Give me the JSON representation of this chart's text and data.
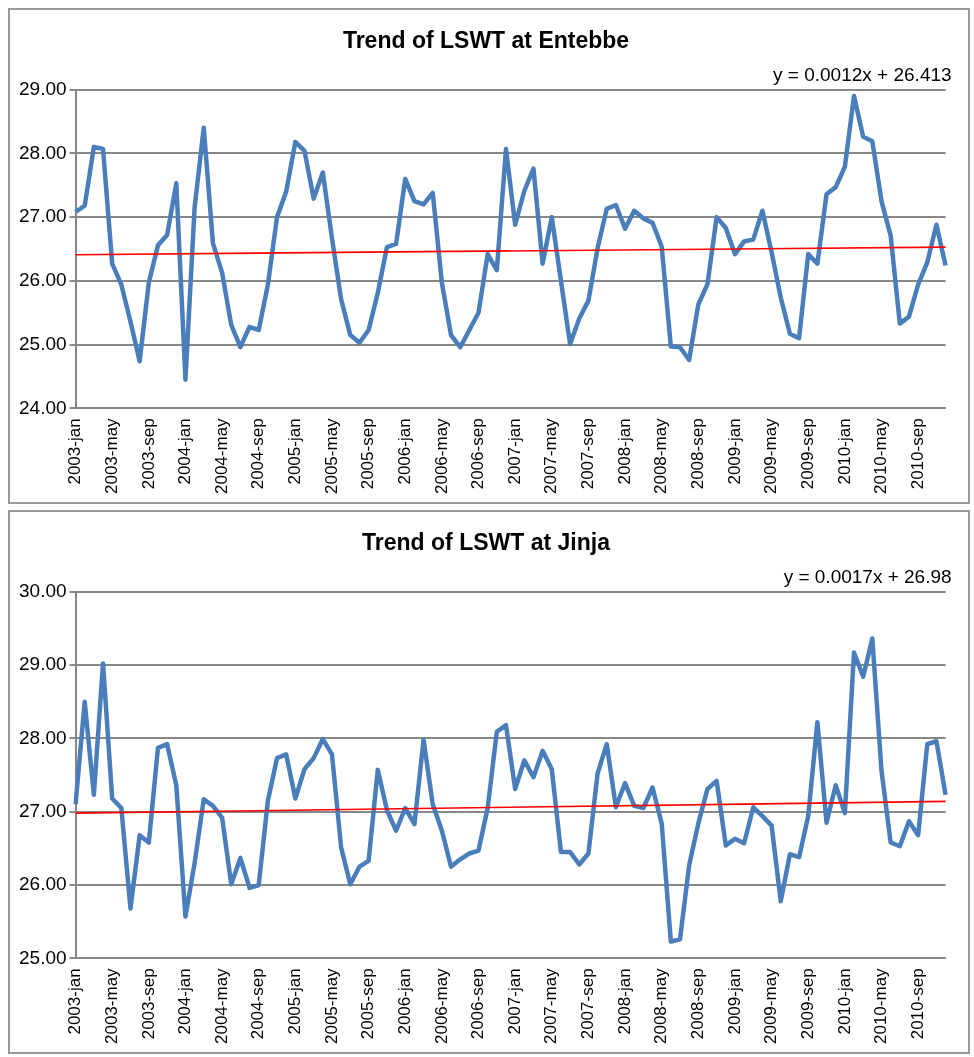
{
  "chart_data": [
    {
      "type": "line",
      "title": "Trend of LSWT at Entebbe",
      "annotations": [
        "y = 0.0012x + 26.413"
      ],
      "categories": [
        "2003-jan",
        null,
        null,
        null,
        "2003-may",
        null,
        null,
        null,
        "2003-sep",
        null,
        null,
        null,
        "2004-jan",
        null,
        null,
        null,
        "2004-may",
        null,
        null,
        null,
        "2004-sep",
        null,
        null,
        null,
        "2005-jan",
        null,
        null,
        null,
        "2005-may",
        null,
        null,
        null,
        "2005-sep",
        null,
        null,
        null,
        "2006-jan",
        null,
        null,
        null,
        "2006-may",
        null,
        null,
        null,
        "2006-sep",
        null,
        null,
        null,
        "2007-jan",
        null,
        null,
        null,
        "2007-may",
        null,
        null,
        null,
        "2007-sep",
        null,
        null,
        null,
        "2008-jan",
        null,
        null,
        null,
        "2008-may",
        null,
        null,
        null,
        "2008-sep",
        null,
        null,
        null,
        "2009-jan",
        null,
        null,
        null,
        "2009-may",
        null,
        null,
        null,
        "2009-sep",
        null,
        null,
        null,
        "2010-jan",
        null,
        null,
        null,
        "2010-may",
        null,
        null,
        null,
        "2010-sep",
        null,
        null,
        null
      ],
      "series": [
        {
          "color": "#4a7ebb",
          "values": [
            27.08,
            27.18,
            28.1,
            28.07,
            26.27,
            25.94,
            25.36,
            24.74,
            25.97,
            26.56,
            26.72,
            27.53,
            24.45,
            27.15,
            28.4,
            26.59,
            26.13,
            25.31,
            24.96,
            25.28,
            25.23,
            25.94,
            27.0,
            27.4,
            28.18,
            28.04,
            27.29,
            27.7,
            26.67,
            25.71,
            25.15,
            25.03,
            25.23,
            25.81,
            26.53,
            26.58,
            27.6,
            27.25,
            27.2,
            27.38,
            25.97,
            25.15,
            24.96,
            25.23,
            25.5,
            26.42,
            26.17,
            28.07,
            26.88,
            27.41,
            27.76,
            26.27,
            27.0,
            26.0,
            25.01,
            25.41,
            25.69,
            26.51,
            27.13,
            27.19,
            26.82,
            27.1,
            26.98,
            26.91,
            26.54,
            24.97,
            24.96,
            24.76,
            25.63,
            25.95,
            27.0,
            26.83,
            26.42,
            26.62,
            26.65,
            27.1,
            26.45,
            25.74,
            25.17,
            25.1,
            26.42,
            26.27,
            27.36,
            27.47,
            27.79,
            28.9,
            28.26,
            28.19,
            27.25,
            26.71,
            25.33,
            25.44,
            25.94,
            26.29,
            26.88,
            26.24
          ]
        },
        {
          "color": "#ff0000",
          "values": [
            26.41,
            null,
            null,
            null,
            null,
            null,
            null,
            null,
            null,
            null,
            null,
            null,
            null,
            null,
            null,
            null,
            null,
            null,
            null,
            null,
            null,
            null,
            null,
            null,
            null,
            null,
            null,
            null,
            null,
            null,
            null,
            null,
            null,
            null,
            null,
            null,
            null,
            null,
            null,
            null,
            null,
            null,
            null,
            null,
            null,
            null,
            null,
            null,
            null,
            null,
            null,
            null,
            null,
            null,
            null,
            null,
            null,
            null,
            null,
            null,
            null,
            null,
            null,
            null,
            null,
            null,
            null,
            null,
            null,
            null,
            null,
            null,
            null,
            null,
            null,
            null,
            null,
            null,
            null,
            null,
            null,
            null,
            null,
            null,
            null,
            null,
            null,
            null,
            null,
            null,
            null,
            null,
            null,
            null,
            null,
            26.53
          ]
        }
      ],
      "ylim": [
        24,
        29
      ],
      "yticks": [
        {
          "value": 24,
          "label": "24.00"
        },
        {
          "value": 25,
          "label": "25.00"
        },
        {
          "value": 26,
          "label": "26.00"
        },
        {
          "value": 27,
          "label": "27.00"
        },
        {
          "value": 28,
          "label": "28.00"
        },
        {
          "value": 29,
          "label": "29.00"
        }
      ],
      "grid": "y",
      "legend": false,
      "marker": "none"
    },
    {
      "type": "line",
      "title": "Trend of LSWT at Jinja",
      "annotations": [
        "y = 0.0017x + 26.98"
      ],
      "categories": [
        "2003-jan",
        null,
        null,
        null,
        "2003-may",
        null,
        null,
        null,
        "2003-sep",
        null,
        null,
        null,
        "2004-jan",
        null,
        null,
        null,
        "2004-may",
        null,
        null,
        null,
        "2004-sep",
        null,
        null,
        null,
        "2005-jan",
        null,
        null,
        null,
        "2005-may",
        null,
        null,
        null,
        "2005-sep",
        null,
        null,
        null,
        "2006-jan",
        null,
        null,
        null,
        "2006-may",
        null,
        null,
        null,
        "2006-sep",
        null,
        null,
        null,
        "2007-jan",
        null,
        null,
        null,
        "2007-may",
        null,
        null,
        null,
        "2007-sep",
        null,
        null,
        null,
        "2008-jan",
        null,
        null,
        null,
        "2008-may",
        null,
        null,
        null,
        "2008-sep",
        null,
        null,
        null,
        "2009-jan",
        null,
        null,
        null,
        "2009-may",
        null,
        null,
        null,
        "2009-sep",
        null,
        null,
        null,
        "2010-jan",
        null,
        null,
        null,
        "2010-may",
        null,
        null,
        null,
        "2010-sep",
        null,
        null,
        null
      ],
      "series": [
        {
          "color": "#4a7ebb",
          "values": [
            27.1,
            28.5,
            27.23,
            29.02,
            27.18,
            27.05,
            25.68,
            26.68,
            26.58,
            27.87,
            27.92,
            27.36,
            25.57,
            26.3,
            27.17,
            27.08,
            26.92,
            26.01,
            26.37,
            25.96,
            26.0,
            27.15,
            27.73,
            27.78,
            27.18,
            27.58,
            27.73,
            27.99,
            27.78,
            26.51,
            26.01,
            26.25,
            26.33,
            27.57,
            27.02,
            26.74,
            27.05,
            26.83,
            27.98,
            27.1,
            26.74,
            26.25,
            26.35,
            26.43,
            26.47,
            27.05,
            28.09,
            28.18,
            27.31,
            27.7,
            27.47,
            27.83,
            27.58,
            26.45,
            26.45,
            26.28,
            26.43,
            27.52,
            27.92,
            27.06,
            27.39,
            27.08,
            27.05,
            27.33,
            26.84,
            25.23,
            25.26,
            26.27,
            26.84,
            27.31,
            27.42,
            26.54,
            26.63,
            26.57,
            27.06,
            26.94,
            26.81,
            25.78,
            26.42,
            26.38,
            26.94,
            28.22,
            26.85,
            27.36,
            26.98,
            29.17,
            28.84,
            29.36,
            27.56,
            26.58,
            26.53,
            26.87,
            26.68,
            27.92,
            27.96,
            27.23
          ]
        },
        {
          "color": "#ff0000",
          "values": [
            26.98,
            null,
            null,
            null,
            null,
            null,
            null,
            null,
            null,
            null,
            null,
            null,
            null,
            null,
            null,
            null,
            null,
            null,
            null,
            null,
            null,
            null,
            null,
            null,
            null,
            null,
            null,
            null,
            null,
            null,
            null,
            null,
            null,
            null,
            null,
            null,
            null,
            null,
            null,
            null,
            null,
            null,
            null,
            null,
            null,
            null,
            null,
            null,
            null,
            null,
            null,
            null,
            null,
            null,
            null,
            null,
            null,
            null,
            null,
            null,
            null,
            null,
            null,
            null,
            null,
            null,
            null,
            null,
            null,
            null,
            null,
            null,
            null,
            null,
            null,
            null,
            null,
            null,
            null,
            null,
            null,
            null,
            null,
            null,
            null,
            null,
            null,
            null,
            null,
            null,
            null,
            null,
            null,
            null,
            null,
            27.14
          ]
        }
      ],
      "ylim": [
        25,
        30
      ],
      "yticks": [
        {
          "value": 25,
          "label": "25.00"
        },
        {
          "value": 26,
          "label": "26.00"
        },
        {
          "value": 27,
          "label": "27.00"
        },
        {
          "value": 28,
          "label": "28.00"
        },
        {
          "value": 29,
          "label": "29.00"
        },
        {
          "value": 30,
          "label": "30.00"
        }
      ],
      "grid": "y",
      "legend": false,
      "marker": "none"
    }
  ]
}
